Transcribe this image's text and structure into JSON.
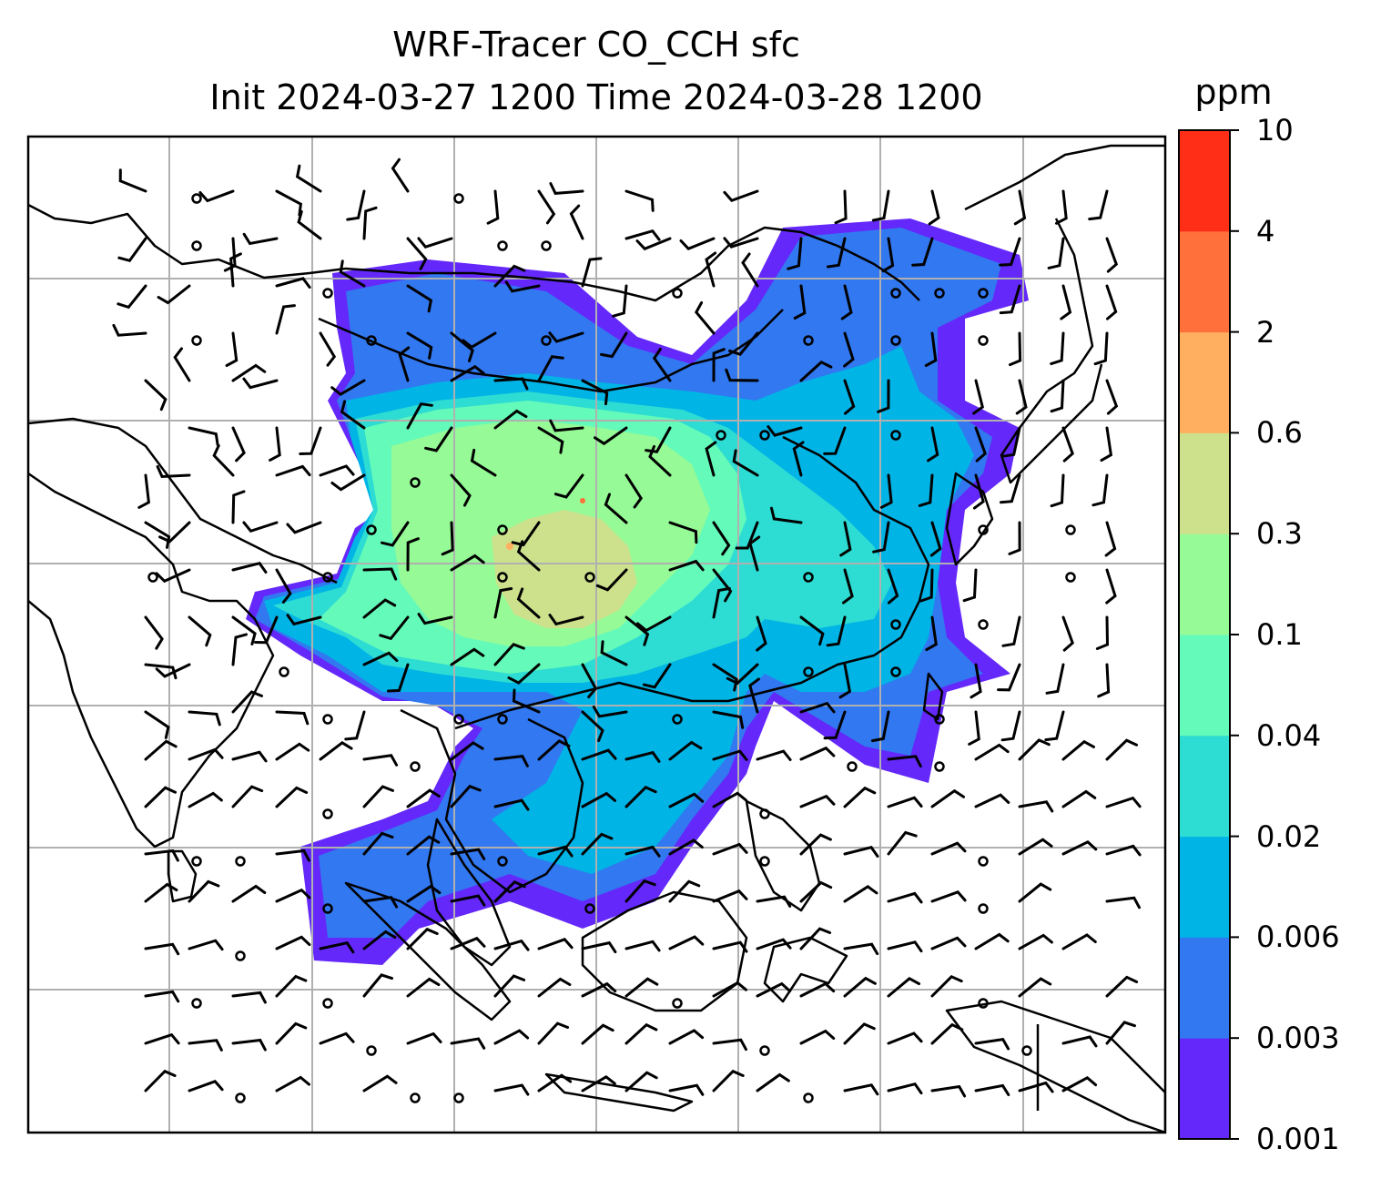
{
  "figure": {
    "title_line_1": "WRF-Tracer CO_CCH sfc",
    "title_line_2": "Init 2024-03-27 1200 Time 2024-03-28 1200"
  },
  "colorbar": {
    "unit": "ppm",
    "ticks": [
      "0.001",
      "0.003",
      "0.006",
      "0.02",
      "0.04",
      "0.1",
      "0.3",
      "0.6",
      "2",
      "4",
      "10"
    ],
    "colors": [
      "#6428fa",
      "#3278f0",
      "#00b4e6",
      "#2ddcd2",
      "#64faba",
      "#96fa96",
      "#cde18c",
      "#ffaf5f",
      "#ff703a",
      "#ff2e17"
    ]
  },
  "map": {
    "type": "filled-contour map with wind barbs",
    "field": "CO_CCH",
    "level": "sfc",
    "gridlines": true,
    "coastlines": true,
    "wind_barbs": true,
    "colors": {
      "frame": "#000000",
      "gridline": "#b0b0b0",
      "coastline": "#000000",
      "land": "#ffffff"
    }
  }
}
